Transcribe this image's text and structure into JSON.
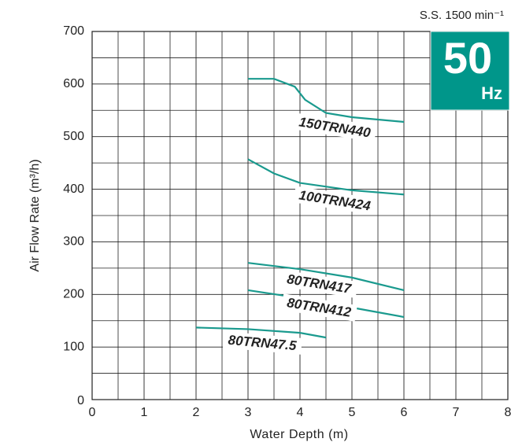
{
  "chart_data": {
    "type": "line",
    "annotation": "S.S. 1500 min⁻¹",
    "badge_number": "50",
    "badge_unit": "Hz",
    "x_label": "Water Depth (m)",
    "y_label": "Air Flow Rate (m³/h)",
    "xlim": [
      0,
      8
    ],
    "ylim": [
      0,
      700
    ],
    "xticks": [
      0,
      1,
      2,
      3,
      4,
      5,
      6,
      7,
      8
    ],
    "yticks": [
      0,
      100,
      200,
      300,
      400,
      500,
      600,
      700
    ],
    "xticks_minor": [
      0.5,
      1.5,
      2.5,
      3.5,
      4.5,
      5.5,
      6.5,
      7.5
    ],
    "yticks_minor": [
      50,
      150,
      250,
      350,
      450,
      550,
      650
    ],
    "grid": true,
    "color": "#1a9a8e",
    "series": [
      {
        "name": "150TRN440",
        "x": [
          3,
          3.5,
          3.9,
          4.1,
          4.5,
          5,
          6
        ],
        "values": [
          610,
          610,
          595,
          570,
          545,
          537,
          528
        ]
      },
      {
        "name": "100TRN424",
        "x": [
          3,
          3.5,
          4,
          5,
          6
        ],
        "values": [
          457,
          430,
          412,
          398,
          390
        ]
      },
      {
        "name": "80TRN417",
        "x": [
          3,
          4,
          5,
          6
        ],
        "values": [
          260,
          248,
          232,
          208
        ]
      },
      {
        "name": "80TRN412",
        "x": [
          3,
          4,
          5,
          6
        ],
        "values": [
          208,
          193,
          175,
          157
        ]
      },
      {
        "name": "80TRN47.5",
        "x": [
          2,
          3,
          4,
          4.5
        ],
        "values": [
          137,
          134,
          127,
          118
        ]
      }
    ]
  }
}
